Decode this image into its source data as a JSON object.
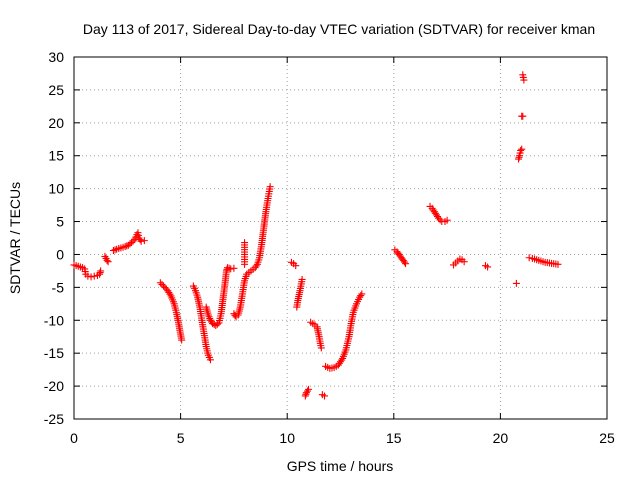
{
  "chart_data": {
    "type": "scatter",
    "title": "Day 113 of 2017, Sidereal Day-to-day VTEC variation (SDTVAR) for receiver kman",
    "xlabel": "GPS time / hours",
    "ylabel": "SDTVAR / TECUs",
    "xlim": [
      0,
      25
    ],
    "ylim": [
      -25,
      30
    ],
    "xticks": [
      0,
      5,
      10,
      15,
      20,
      25
    ],
    "yticks": [
      -25,
      -20,
      -15,
      -10,
      -5,
      0,
      5,
      10,
      15,
      20,
      25,
      30
    ],
    "xtick_labels": [
      "0",
      "5",
      "10",
      "15",
      "20",
      "25"
    ],
    "ytick_labels": [
      "-25",
      "-20",
      "-15",
      "-10",
      "-5",
      "0",
      "5",
      "10",
      "15",
      "20",
      "25",
      "30"
    ],
    "grid": true,
    "marker": "+",
    "color": "#ff0000",
    "series": [
      {
        "name": "SDTVAR",
        "segments": [
          [
            [
              0.0,
              -1.6
            ],
            [
              0.1,
              -1.7
            ],
            [
              0.2,
              -1.8
            ],
            [
              0.3,
              -1.9
            ],
            [
              0.4,
              -2.0
            ],
            [
              0.5,
              -2.2
            ],
            [
              0.55,
              -3.0
            ],
            [
              0.65,
              -3.3
            ],
            [
              0.8,
              -3.4
            ],
            [
              0.95,
              -3.3
            ],
            [
              1.1,
              -3.2
            ],
            [
              1.2,
              -3.0
            ],
            [
              1.25,
              -2.5
            ]
          ],
          [
            [
              1.45,
              -0.3
            ],
            [
              1.5,
              -0.6
            ],
            [
              1.55,
              -0.9
            ],
            [
              1.6,
              -1.1
            ]
          ],
          [
            [
              1.85,
              0.6
            ],
            [
              2.0,
              0.8
            ],
            [
              2.2,
              1.0
            ],
            [
              2.4,
              1.2
            ],
            [
              2.55,
              1.4
            ],
            [
              2.7,
              1.8
            ],
            [
              2.85,
              2.3
            ],
            [
              2.95,
              3.0
            ],
            [
              3.0,
              3.3
            ],
            [
              3.05,
              2.5
            ],
            [
              3.15,
              2.0
            ],
            [
              3.3,
              2.1
            ]
          ],
          [
            [
              4.05,
              -4.3
            ],
            [
              4.2,
              -4.8
            ],
            [
              4.4,
              -5.5
            ],
            [
              4.55,
              -6.3
            ],
            [
              4.7,
              -7.5
            ],
            [
              4.8,
              -8.8
            ],
            [
              4.9,
              -10.3
            ],
            [
              4.98,
              -11.8
            ],
            [
              5.05,
              -13.0
            ]
          ],
          [
            [
              5.6,
              -4.8
            ],
            [
              5.7,
              -5.5
            ],
            [
              5.8,
              -6.5
            ],
            [
              5.9,
              -8.0
            ],
            [
              6.0,
              -10.0
            ],
            [
              6.1,
              -12.0
            ],
            [
              6.2,
              -14.0
            ],
            [
              6.3,
              -15.3
            ],
            [
              6.4,
              -16.0
            ]
          ],
          [
            [
              6.2,
              -8.0
            ],
            [
              6.3,
              -9.2
            ],
            [
              6.4,
              -10.0
            ],
            [
              6.5,
              -10.5
            ],
            [
              6.65,
              -10.8
            ],
            [
              6.8,
              -10.4
            ],
            [
              6.9,
              -9.0
            ],
            [
              7.0,
              -6.5
            ],
            [
              7.1,
              -4.0
            ],
            [
              7.15,
              -2.5
            ],
            [
              7.2,
              -2.0
            ],
            [
              7.35,
              -2.2
            ],
            [
              7.5,
              -2.1
            ]
          ],
          [
            [
              7.5,
              -9.0
            ],
            [
              7.6,
              -9.5
            ],
            [
              7.7,
              -9.2
            ],
            [
              7.8,
              -8.0
            ],
            [
              7.9,
              -6.0
            ],
            [
              8.0,
              -4.0
            ],
            [
              8.1,
              -3.0
            ],
            [
              8.3,
              -2.5
            ],
            [
              8.5,
              -2.0
            ],
            [
              8.6,
              -1.5
            ],
            [
              8.7,
              -0.5
            ],
            [
              8.8,
              1.5
            ],
            [
              8.9,
              4.0
            ],
            [
              9.0,
              6.5
            ],
            [
              9.1,
              8.5
            ],
            [
              9.2,
              10.3
            ]
          ],
          [
            [
              8.0,
              1.8
            ],
            [
              8.0,
              0.0
            ],
            [
              8.0,
              -1.5
            ]
          ],
          [
            [
              10.2,
              -1.2
            ],
            [
              10.3,
              -1.4
            ],
            [
              10.4,
              -1.7
            ]
          ],
          [
            [
              10.45,
              -8.0
            ],
            [
              10.5,
              -7.0
            ],
            [
              10.6,
              -5.5
            ],
            [
              10.7,
              -3.8
            ]
          ],
          [
            [
              10.85,
              -21.5
            ],
            [
              10.9,
              -21.0
            ],
            [
              11.0,
              -20.5
            ]
          ],
          [
            [
              11.1,
              -10.3
            ],
            [
              11.2,
              -10.5
            ],
            [
              11.3,
              -10.7
            ],
            [
              11.4,
              -11.0
            ],
            [
              11.5,
              -12.5
            ],
            [
              11.55,
              -13.5
            ],
            [
              11.6,
              -14.2
            ]
          ],
          [
            [
              11.65,
              -21.3
            ],
            [
              11.75,
              -21.5
            ]
          ],
          [
            [
              11.8,
              -17.0
            ],
            [
              12.0,
              -17.3
            ],
            [
              12.2,
              -17.2
            ],
            [
              12.4,
              -16.8
            ],
            [
              12.6,
              -15.8
            ],
            [
              12.75,
              -14.5
            ],
            [
              12.9,
              -12.5
            ],
            [
              13.0,
              -10.5
            ],
            [
              13.1,
              -8.8
            ],
            [
              13.25,
              -7.5
            ],
            [
              13.4,
              -6.5
            ],
            [
              13.5,
              -6.0
            ]
          ],
          [
            [
              15.05,
              0.7
            ],
            [
              15.15,
              0.4
            ],
            [
              15.25,
              0.0
            ],
            [
              15.35,
              -0.5
            ],
            [
              15.45,
              -0.9
            ],
            [
              15.55,
              -1.4
            ]
          ],
          [
            [
              16.7,
              7.3
            ],
            [
              16.8,
              7.0
            ],
            [
              16.9,
              6.5
            ],
            [
              17.0,
              6.0
            ],
            [
              17.1,
              5.5
            ],
            [
              17.25,
              5.0
            ],
            [
              17.4,
              5.0
            ],
            [
              17.5,
              5.2
            ]
          ],
          [
            [
              17.8,
              -1.6
            ],
            [
              17.9,
              -1.3
            ],
            [
              18.0,
              -1.0
            ],
            [
              18.1,
              -0.7
            ],
            [
              18.2,
              -0.8
            ],
            [
              18.3,
              -1.1
            ]
          ],
          [
            [
              19.3,
              -1.7
            ],
            [
              19.4,
              -1.9
            ]
          ],
          [
            [
              20.75,
              -4.4
            ]
          ],
          [
            [
              20.85,
              14.5
            ],
            [
              20.9,
              15.0
            ],
            [
              20.95,
              15.8
            ],
            [
              21.0,
              16.0
            ]
          ],
          [
            [
              21.0,
              21.0
            ],
            [
              21.05,
              21.0
            ]
          ],
          [
            [
              21.05,
              27.3
            ],
            [
              21.1,
              26.5
            ]
          ],
          [
            [
              21.35,
              -0.5
            ],
            [
              21.5,
              -0.6
            ],
            [
              21.7,
              -0.8
            ],
            [
              21.9,
              -1.0
            ],
            [
              22.1,
              -1.2
            ],
            [
              22.3,
              -1.3
            ],
            [
              22.5,
              -1.4
            ],
            [
              22.7,
              -1.5
            ]
          ]
        ]
      }
    ]
  }
}
